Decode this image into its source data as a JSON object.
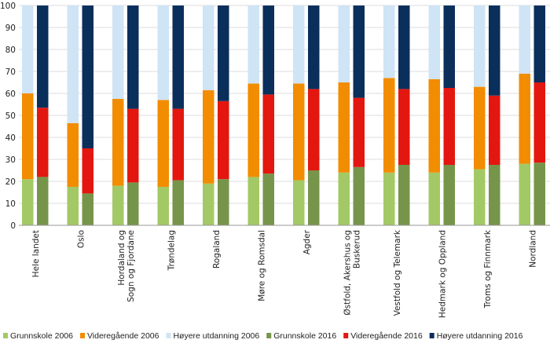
{
  "chart_data": {
    "type": "bar",
    "stacked": true,
    "title": "",
    "xlabel": "",
    "ylabel": "",
    "ylim": [
      0,
      100
    ],
    "yticks": [
      0,
      10,
      20,
      30,
      40,
      50,
      60,
      70,
      80,
      90,
      100
    ],
    "grid": true,
    "legend_position": "bottom",
    "categories": [
      [
        "Hele landet"
      ],
      [
        "Oslo"
      ],
      [
        "Hordaland og",
        "Sogn og Fjordane"
      ],
      [
        "Trøndelag"
      ],
      [
        "Rogaland"
      ],
      [
        "Møre og Romsdal"
      ],
      [
        "Agder"
      ],
      [
        "Østfold, Akershus og",
        "Buskerud"
      ],
      [
        "Vestfold og Telemark"
      ],
      [
        "Hedmark og Oppland"
      ],
      [
        "Troms og Finnmark"
      ],
      [
        "Nordland"
      ]
    ],
    "series": [
      {
        "name": "Grunnskole 2006",
        "stack": "2006",
        "color": "#a3c966",
        "values": [
          21,
          17.5,
          18,
          17.5,
          19,
          22,
          20.5,
          24,
          24,
          24,
          25.5,
          28
        ]
      },
      {
        "name": "Videregående 2006",
        "stack": "2006",
        "color": "#f28c00",
        "values": [
          39,
          29,
          39.5,
          39.5,
          42.5,
          42.5,
          44,
          41,
          43,
          42.5,
          37.5,
          41
        ]
      },
      {
        "name": "Høyere utdanning 2006",
        "stack": "2006",
        "color": "#cfe4f5",
        "values": [
          40,
          53.5,
          42.5,
          43,
          38.5,
          35.5,
          35.5,
          35,
          33,
          33.5,
          37,
          31
        ]
      },
      {
        "name": "Grunnskole 2016",
        "stack": "2016",
        "color": "#76954a",
        "values": [
          22,
          14.5,
          19.5,
          20.5,
          21,
          23.5,
          25,
          26.5,
          27.5,
          27.5,
          27.5,
          28.5
        ]
      },
      {
        "name": "Videregående 2016",
        "stack": "2016",
        "color": "#e3170f",
        "values": [
          31.5,
          20.5,
          33.5,
          32.5,
          35.5,
          36,
          37,
          31.5,
          34.5,
          35,
          31.5,
          36.5
        ]
      },
      {
        "name": "Høyere utdanning 2016",
        "stack": "2016",
        "color": "#0b2f5b",
        "values": [
          46.5,
          65,
          47,
          47,
          43.5,
          40.5,
          38,
          42,
          38,
          37.5,
          41,
          35
        ]
      }
    ]
  }
}
